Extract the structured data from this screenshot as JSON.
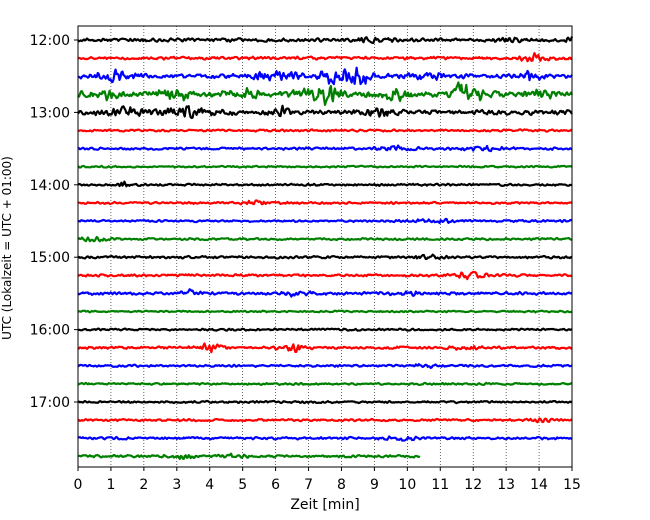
{
  "chart_data": {
    "type": "line",
    "title": "",
    "xlabel": "Zeit  [min]",
    "ylabel": "UTC (Lokalzeit = UTC + 01:00)",
    "xlim": [
      0,
      15
    ],
    "x_ticks": [
      "0",
      "1",
      "2",
      "3",
      "4",
      "5",
      "6",
      "7",
      "8",
      "9",
      "10",
      "11",
      "12",
      "13",
      "14",
      "15"
    ],
    "y_tick_labels": [
      "12:00",
      "13:00",
      "14:00",
      "15:00",
      "16:00",
      "17:00"
    ],
    "grid": "vertical dotted lines at each minute",
    "trace_minutes": 15,
    "line_colors": [
      "#000000",
      "#ff0000",
      "#0000ff",
      "#008000"
    ],
    "series": [
      {
        "start": "12:00",
        "color": "#000000",
        "end_min": 15,
        "amp": 1.0,
        "events": [
          [
            8.8,
            0.8,
            0.3
          ],
          [
            13.1,
            1.0,
            0.3
          ],
          [
            14.95,
            3.0,
            0.08
          ]
        ]
      },
      {
        "start": "12:15",
        "color": "#ff0000",
        "end_min": 15,
        "amp": 0.8,
        "events": [
          [
            13.9,
            2.0,
            0.3
          ]
        ]
      },
      {
        "start": "12:30",
        "color": "#0000ff",
        "end_min": 15,
        "amp": 1.2,
        "events": [
          [
            1.1,
            2.5,
            0.4
          ],
          [
            5.6,
            3.0,
            0.25
          ],
          [
            6.3,
            2.0,
            0.3
          ],
          [
            7.7,
            3.5,
            0.3
          ],
          [
            8.4,
            4.5,
            0.35
          ],
          [
            10.6,
            2.0,
            0.4
          ],
          [
            13.7,
            3.0,
            0.2
          ]
        ]
      },
      {
        "start": "12:45",
        "color": "#008000",
        "end_min": 15,
        "amp": 1.5,
        "events": [
          [
            0.8,
            2.0,
            0.4
          ],
          [
            3.0,
            3.0,
            0.4
          ],
          [
            5.0,
            2.0,
            0.4
          ],
          [
            7.1,
            3.0,
            0.4
          ],
          [
            7.6,
            3.5,
            0.3
          ],
          [
            9.6,
            3.0,
            0.4
          ],
          [
            11.6,
            5.0,
            0.15
          ],
          [
            12.1,
            2.5,
            0.4
          ],
          [
            14.0,
            2.0,
            0.4
          ]
        ]
      },
      {
        "start": "13:00",
        "color": "#000000",
        "end_min": 15,
        "amp": 1.4,
        "events": [
          [
            1.5,
            2.5,
            0.4
          ],
          [
            3.4,
            2.5,
            0.5
          ],
          [
            6.3,
            2.5,
            0.3
          ],
          [
            9.2,
            1.6,
            0.4
          ]
        ]
      },
      {
        "start": "13:15",
        "color": "#ff0000",
        "end_min": 15,
        "amp": 0.6,
        "events": []
      },
      {
        "start": "13:30",
        "color": "#0000ff",
        "end_min": 15,
        "amp": 0.7,
        "events": [
          [
            9.7,
            1.0,
            0.4
          ],
          [
            12.4,
            1.0,
            0.4
          ]
        ]
      },
      {
        "start": "13:45",
        "color": "#008000",
        "end_min": 15,
        "amp": 0.5,
        "events": []
      },
      {
        "start": "14:00",
        "color": "#000000",
        "end_min": 15,
        "amp": 0.6,
        "events": [
          [
            1.4,
            2.0,
            0.1
          ]
        ]
      },
      {
        "start": "14:15",
        "color": "#ff0000",
        "end_min": 15,
        "amp": 0.6,
        "events": [
          [
            5.4,
            1.0,
            0.3
          ]
        ]
      },
      {
        "start": "14:30",
        "color": "#0000ff",
        "end_min": 15,
        "amp": 0.6,
        "events": [
          [
            10.8,
            1.0,
            0.4
          ]
        ]
      },
      {
        "start": "14:45",
        "color": "#008000",
        "end_min": 15,
        "amp": 0.6,
        "events": [
          [
            0.5,
            1.0,
            0.3
          ]
        ]
      },
      {
        "start": "15:00",
        "color": "#000000",
        "end_min": 15,
        "amp": 0.7,
        "events": [
          [
            10.6,
            1.0,
            0.3
          ]
        ]
      },
      {
        "start": "15:15",
        "color": "#ff0000",
        "end_min": 15,
        "amp": 0.7,
        "events": [
          [
            11.9,
            1.8,
            0.3
          ]
        ]
      },
      {
        "start": "15:30",
        "color": "#0000ff",
        "end_min": 15,
        "amp": 0.8,
        "events": [
          [
            3.4,
            1.5,
            0.2
          ],
          [
            6.6,
            1.0,
            0.3
          ],
          [
            10.1,
            1.0,
            0.3
          ]
        ]
      },
      {
        "start": "15:45",
        "color": "#008000",
        "end_min": 15,
        "amp": 0.5,
        "events": []
      },
      {
        "start": "16:00",
        "color": "#000000",
        "end_min": 15,
        "amp": 0.6,
        "events": []
      },
      {
        "start": "16:15",
        "color": "#ff0000",
        "end_min": 15,
        "amp": 0.7,
        "events": [
          [
            4.0,
            2.0,
            0.3
          ],
          [
            6.5,
            2.5,
            0.25
          ],
          [
            11.8,
            1.0,
            0.3
          ]
        ]
      },
      {
        "start": "16:30",
        "color": "#0000ff",
        "end_min": 15,
        "amp": 0.6,
        "events": [
          [
            10.6,
            1.0,
            0.3
          ]
        ]
      },
      {
        "start": "16:45",
        "color": "#008000",
        "end_min": 15,
        "amp": 0.6,
        "events": []
      },
      {
        "start": "17:00",
        "color": "#000000",
        "end_min": 15,
        "amp": 0.6,
        "events": []
      },
      {
        "start": "17:15",
        "color": "#ff0000",
        "end_min": 15,
        "amp": 0.6,
        "events": [
          [
            14.1,
            1.0,
            0.3
          ]
        ]
      },
      {
        "start": "17:30",
        "color": "#0000ff",
        "end_min": 15,
        "amp": 0.7,
        "events": [
          [
            9.8,
            1.0,
            0.3
          ]
        ]
      },
      {
        "start": "17:45",
        "color": "#008000",
        "end_min": 10.4,
        "amp": 0.7,
        "events": [
          [
            3.1,
            1.0,
            0.3
          ],
          [
            4.8,
            1.0,
            0.3
          ]
        ]
      }
    ]
  }
}
